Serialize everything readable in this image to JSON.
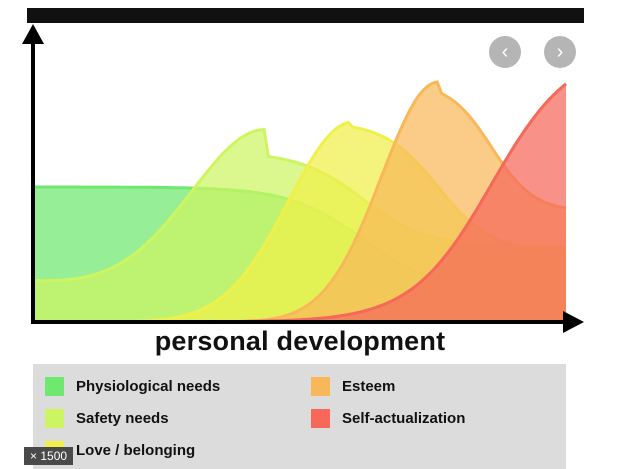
{
  "chart_data": {
    "type": "area",
    "xlabel": "personal development",
    "ylabel": "",
    "series": [
      {
        "name": "Physiological needs",
        "color": "#6ee86e"
      },
      {
        "name": "Safety needs",
        "color": "#cdf562"
      },
      {
        "name": "Love / belonging",
        "color": "#f0f04a"
      },
      {
        "name": "Esteem",
        "color": "#f8b85a"
      },
      {
        "name": "Self-actualization",
        "color": "#f5685a"
      }
    ],
    "legend": "bottom"
  },
  "badge": "× 1500",
  "nav": {
    "prev": "‹",
    "next": "›"
  },
  "colors": {
    "physiological": "#6ee86e",
    "safety": "#cdf562",
    "love": "#f0f04a",
    "esteem": "#f8b85a",
    "self": "#f5685a",
    "axis": "#000000"
  }
}
